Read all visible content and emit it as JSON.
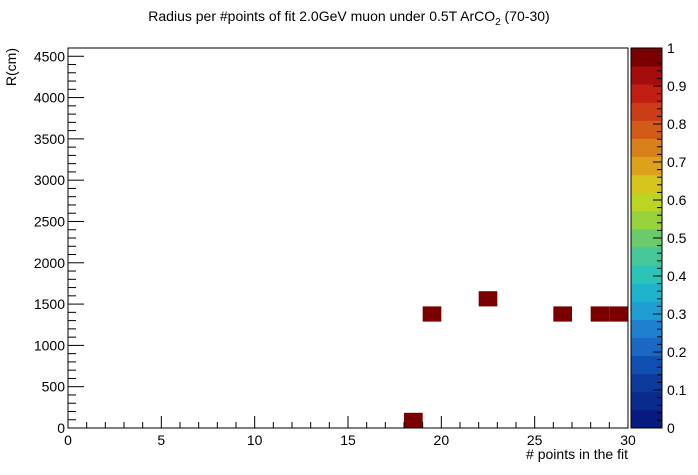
{
  "chart_data": {
    "type": "heatmap",
    "title": {
      "main": "Radius per #points of fit 2.0GeV muon under 0.5T ArCO",
      "subscript": "2",
      "suffix": " (70-30)"
    },
    "xlabel": "# points in the fit",
    "ylabel": "R(cm)",
    "xlim": [
      0,
      30
    ],
    "ylim": [
      0,
      4600
    ],
    "x_ticks": [
      0,
      5,
      10,
      15,
      20,
      25,
      30
    ],
    "y_ticks": [
      0,
      500,
      1000,
      1500,
      2000,
      2500,
      3000,
      3500,
      4000,
      4500
    ],
    "grid": false,
    "bin_width_x": 1,
    "bin_height_y": 184,
    "cells": [
      {
        "x": 18,
        "y": 0,
        "value": 1
      },
      {
        "x": 19,
        "y": 1288,
        "value": 1
      },
      {
        "x": 22,
        "y": 1472,
        "value": 1
      },
      {
        "x": 26,
        "y": 1288,
        "value": 1
      },
      {
        "x": 28,
        "y": 1288,
        "value": 1
      },
      {
        "x": 29,
        "y": 1288,
        "value": 1
      }
    ],
    "colorbar": {
      "range": [
        0,
        1
      ],
      "ticks": [
        0,
        0.1,
        0.2,
        0.3,
        0.4,
        0.5,
        0.6,
        0.7,
        0.8,
        0.9,
        1
      ],
      "tick_labels": [
        "0",
        "0.1",
        "0.2",
        "0.3",
        "0.4",
        "0.5",
        "0.6",
        "0.7",
        "0.8",
        "0.9",
        "1"
      ],
      "colors": [
        "#061a7f",
        "#0a2a8d",
        "#0d3a9c",
        "#1050b2",
        "#1a68c4",
        "#1e80cf",
        "#1e9ed2",
        "#1fb4cb",
        "#2bc4b6",
        "#45c79a",
        "#6bcb6c",
        "#95d23b",
        "#bcd424",
        "#d6c51c",
        "#dca21a",
        "#d8801a",
        "#d25c17",
        "#cc3c16",
        "#c21e14",
        "#a50d0d",
        "#7a0000"
      ]
    }
  }
}
